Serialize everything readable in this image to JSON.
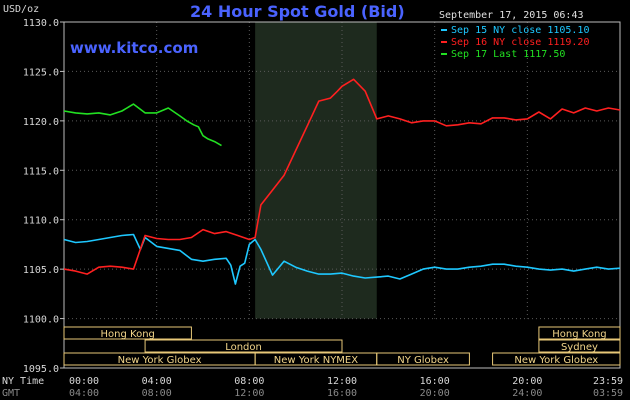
{
  "header": {
    "title": "24 Hour Spot Gold (Bid)",
    "site": "www.kitco.com",
    "date": "September 17, 2015 06:43",
    "y_unit": "USD/oz"
  },
  "legend": [
    {
      "label": "Sep 15 NY close 1105.10",
      "color": "#1ec8ff"
    },
    {
      "label": "Sep 16 NY close 1119.20",
      "color": "#ff2020"
    },
    {
      "label": "Sep 17 Last 1117.50",
      "color": "#22e022"
    }
  ],
  "axis": {
    "row1_label": "NY Time",
    "row2_label": "GMT",
    "x_ticks": [
      "00:00",
      "04:00",
      "08:00",
      "12:00",
      "16:00",
      "20:00",
      "23:59"
    ],
    "x_ticks_gmt": [
      "04:00",
      "08:00",
      "12:00",
      "16:00",
      "20:00",
      "24:00",
      "03:59"
    ],
    "y_ticks": [
      "1130.0",
      "1125.0",
      "1120.0",
      "1115.0",
      "1110.0",
      "1105.0",
      "1100.0",
      "1095.0"
    ]
  },
  "sessions": [
    {
      "label": "Hong Kong",
      "row": 0,
      "start": 0,
      "end": 5.5
    },
    {
      "label": "Hong Kong",
      "row": 0,
      "start": 20.5,
      "end": 24
    },
    {
      "label": "London",
      "row": 1,
      "start": 3.5,
      "end": 12
    },
    {
      "label": "Sydney",
      "row": 1,
      "start": 20.5,
      "end": 24
    },
    {
      "label": "New York Globex",
      "row": 2,
      "start": 0,
      "end": 8.25
    },
    {
      "label": "New York NYMEX",
      "row": 2,
      "start": 8.25,
      "end": 13.5
    },
    {
      "label": "NY Globex",
      "row": 2,
      "start": 13.5,
      "end": 17.5
    },
    {
      "label": "New York Globex",
      "row": 2,
      "start": 18.5,
      "end": 24
    }
  ],
  "chart_data": {
    "type": "line",
    "title": "24 Hour Spot Gold (Bid)",
    "xlabel": "NY Time",
    "ylabel": "USD/oz",
    "xlim": [
      0,
      24
    ],
    "ylim": [
      1095,
      1130
    ],
    "y_ticks": [
      1095,
      1100,
      1105,
      1110,
      1115,
      1120,
      1125,
      1130
    ],
    "x_ticks": [
      0,
      4,
      8,
      12,
      16,
      20,
      24
    ],
    "grid": true,
    "legend_position": "top-right",
    "shaded_x_range": [
      8.25,
      13.5
    ],
    "series": [
      {
        "name": "Sep 15 NY close 1105.10",
        "color": "#1ec8ff",
        "x": [
          0,
          0.5,
          1,
          1.5,
          2,
          2.5,
          3,
          3.3,
          3.5,
          4,
          4.5,
          5,
          5.5,
          6,
          6.5,
          7,
          7.2,
          7.4,
          7.6,
          7.8,
          8,
          8.25,
          8.5,
          9,
          9.5,
          10,
          10.5,
          11,
          11.5,
          12,
          12.5,
          13,
          13.5,
          14,
          14.5,
          15,
          15.5,
          16,
          16.5,
          17,
          17.5,
          18,
          18.5,
          19,
          19.5,
          20,
          20.5,
          21,
          21.5,
          22,
          22.5,
          23,
          23.5,
          24
        ],
        "y": [
          1108.0,
          1107.7,
          1107.8,
          1108.0,
          1108.2,
          1108.4,
          1108.5,
          1107.0,
          1108.2,
          1107.3,
          1107.1,
          1106.9,
          1106.0,
          1105.8,
          1106.0,
          1106.1,
          1105.4,
          1103.5,
          1105.3,
          1105.6,
          1107.5,
          1108.0,
          1107.0,
          1104.4,
          1105.8,
          1105.2,
          1104.8,
          1104.5,
          1104.5,
          1104.6,
          1104.3,
          1104.1,
          1104.2,
          1104.3,
          1104.0,
          1104.5,
          1105.0,
          1105.2,
          1105.0,
          1105.0,
          1105.2,
          1105.3,
          1105.5,
          1105.5,
          1105.3,
          1105.2,
          1105.0,
          1104.9,
          1105.0,
          1104.8,
          1105.0,
          1105.2,
          1105.0,
          1105.1
        ]
      },
      {
        "name": "Sep 16 NY close 1119.20",
        "color": "#ff2020",
        "x": [
          0,
          0.5,
          1,
          1.5,
          2,
          2.5,
          3,
          3.5,
          4,
          4.5,
          5,
          5.5,
          6,
          6.5,
          7,
          7.5,
          8,
          8.25,
          8.5,
          9,
          9.5,
          10,
          10.5,
          11,
          11.5,
          11.8,
          12,
          12.5,
          13,
          13.5,
          14,
          14.5,
          15,
          15.5,
          16,
          16.5,
          17,
          17.5,
          18,
          18.5,
          19,
          19.5,
          20,
          20.5,
          21,
          21.5,
          22,
          22.5,
          23,
          23.5,
          24
        ],
        "y": [
          1105.0,
          1104.8,
          1104.5,
          1105.2,
          1105.3,
          1105.2,
          1105.0,
          1108.4,
          1108.1,
          1108.0,
          1108.0,
          1108.2,
          1109.0,
          1108.6,
          1108.8,
          1108.4,
          1108.0,
          1108.2,
          1111.5,
          1113.0,
          1114.5,
          1117.0,
          1119.5,
          1122.0,
          1122.3,
          1123.0,
          1123.5,
          1124.2,
          1123.0,
          1120.2,
          1120.5,
          1120.2,
          1119.8,
          1120.0,
          1120.0,
          1119.5,
          1119.6,
          1119.8,
          1119.7,
          1120.3,
          1120.3,
          1120.1,
          1120.2,
          1120.9,
          1120.2,
          1121.2,
          1120.8,
          1121.3,
          1121.0,
          1121.3,
          1121.1
        ]
      },
      {
        "name": "Sep 17 Last 1117.50",
        "color": "#22e022",
        "x": [
          0,
          0.5,
          1,
          1.5,
          2,
          2.5,
          3,
          3.5,
          4,
          4.5,
          5,
          5.3,
          5.6,
          5.8,
          6,
          6.2,
          6.5,
          6.8
        ],
        "y": [
          1121.0,
          1120.8,
          1120.7,
          1120.8,
          1120.6,
          1121.0,
          1121.7,
          1120.8,
          1120.8,
          1121.3,
          1120.5,
          1120.0,
          1119.6,
          1119.4,
          1118.5,
          1118.2,
          1117.9,
          1117.5
        ]
      }
    ]
  }
}
